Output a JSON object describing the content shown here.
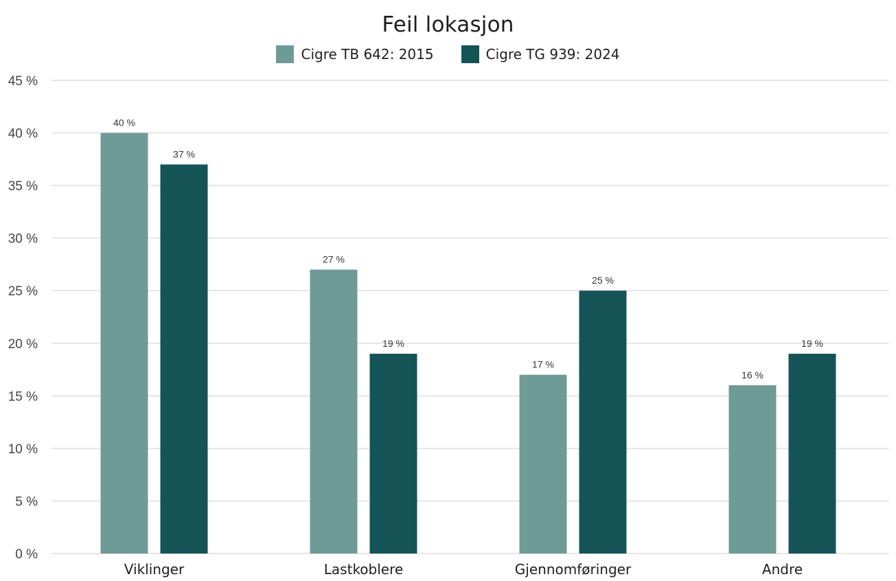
{
  "chart_data": {
    "type": "bar",
    "title": "Feil lokasjon",
    "xlabel": "",
    "ylabel": "",
    "categories": [
      "Viklinger",
      "Lastkoblere",
      "Gjennomføringer",
      "Andre"
    ],
    "series": [
      {
        "name": "Cigre TB 642: 2015",
        "color": "#6f9b96",
        "values": [
          40,
          27,
          17,
          16
        ],
        "labels": [
          "40 %",
          "27 %",
          "17 %",
          "16 %"
        ]
      },
      {
        "name": "Cigre TG 939: 2024",
        "color": "#145457",
        "values": [
          37,
          19,
          25,
          19
        ],
        "labels": [
          "37 %",
          "19 %",
          "25 %",
          "19 %"
        ]
      }
    ],
    "ylim": [
      0,
      45
    ],
    "yticks": [
      0,
      5,
      10,
      15,
      20,
      25,
      30,
      35,
      40,
      45
    ],
    "ytick_labels": [
      "0 %",
      "5 %",
      "10 %",
      "15 %",
      "20 %",
      "25 %",
      "30 %",
      "35 %",
      "40 %",
      "45 %"
    ],
    "grid": true,
    "legend_position": "top-center"
  }
}
